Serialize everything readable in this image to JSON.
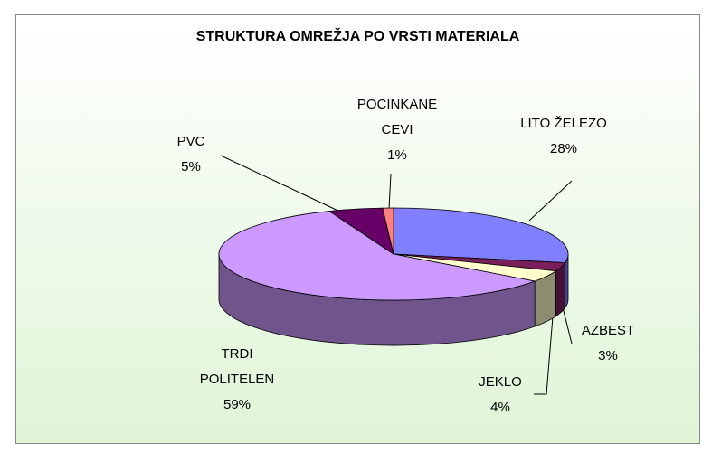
{
  "chart_data": {
    "type": "pie",
    "title": "STRUKTURA OMREŽJA PO VRSTI MATERIALA",
    "categories": [
      "LITO ŽELEZO",
      "AZBEST",
      "JEKLO",
      "TRDI POLITELEN",
      "PVC",
      "POCINKANE CEVI"
    ],
    "values": [
      28,
      3,
      4,
      59,
      5,
      1
    ],
    "value_labels": [
      "28%",
      "3%",
      "4%",
      "59%",
      "5%",
      "1%"
    ],
    "colors": [
      "#8080ff",
      "#7a1f5c",
      "#ffffcc",
      "#cc99ff",
      "#660066",
      "#ff8080"
    ]
  }
}
